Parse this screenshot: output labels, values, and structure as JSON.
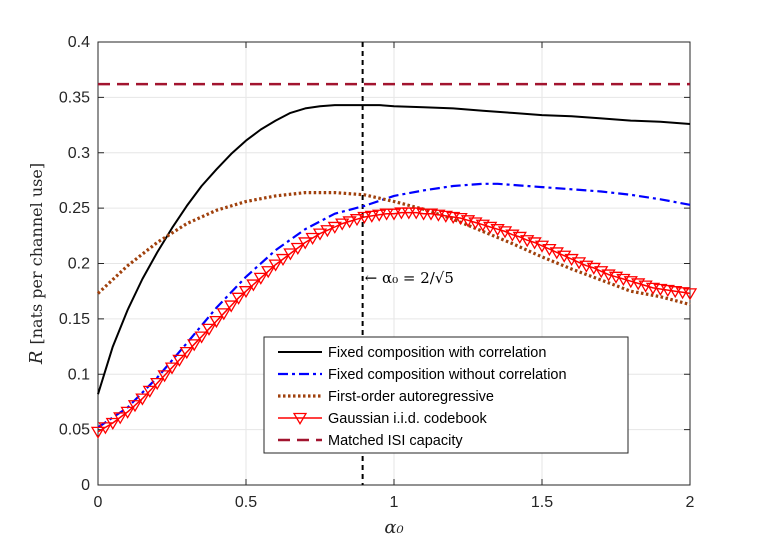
{
  "chart_data": {
    "type": "line",
    "title": "",
    "xlabel": "α₀",
    "ylabel_var": "R",
    "ylabel_unit": "[nats per channel use]",
    "xlim": [
      0,
      2
    ],
    "ylim": [
      0,
      0.4
    ],
    "grid": true,
    "legend_position": "lower-right",
    "x_ticks": [
      "0",
      "0.5",
      "1",
      "1.5",
      "2"
    ],
    "y_ticks": [
      "0",
      "0.05",
      "0.1",
      "0.15",
      "0.2",
      "0.25",
      "0.3",
      "0.35",
      "0.4"
    ],
    "vline": {
      "x": 0.894,
      "color": "#000000"
    },
    "annotation": {
      "prefix": "← α₀ = 2/√5",
      "x": 0.894,
      "y": 0.175
    },
    "series": [
      {
        "name": "Fixed composition with correlation",
        "color": "#000000",
        "style": "solid",
        "x": [
          0,
          0.05,
          0.1,
          0.15,
          0.2,
          0.25,
          0.3,
          0.35,
          0.4,
          0.45,
          0.5,
          0.55,
          0.6,
          0.65,
          0.7,
          0.75,
          0.8,
          0.85,
          0.9,
          0.95,
          1.0,
          1.1,
          1.2,
          1.3,
          1.4,
          1.5,
          1.6,
          1.7,
          1.8,
          1.9,
          2.0
        ],
        "values": [
          0.082,
          0.125,
          0.158,
          0.186,
          0.21,
          0.232,
          0.252,
          0.27,
          0.285,
          0.299,
          0.311,
          0.321,
          0.329,
          0.336,
          0.34,
          0.342,
          0.343,
          0.343,
          0.343,
          0.343,
          0.342,
          0.341,
          0.34,
          0.338,
          0.336,
          0.334,
          0.333,
          0.331,
          0.329,
          0.328,
          0.326
        ]
      },
      {
        "name": "Fixed composition without correlation",
        "color": "#0000ff",
        "style": "dashdot",
        "x": [
          0,
          0.1,
          0.2,
          0.3,
          0.4,
          0.5,
          0.6,
          0.7,
          0.8,
          0.9,
          1.0,
          1.1,
          1.2,
          1.3,
          1.35,
          1.4,
          1.5,
          1.6,
          1.7,
          1.8,
          1.9,
          2.0
        ],
        "values": [
          0.052,
          0.07,
          0.097,
          0.128,
          0.16,
          0.188,
          0.212,
          0.231,
          0.245,
          0.252,
          0.261,
          0.266,
          0.27,
          0.272,
          0.272,
          0.271,
          0.269,
          0.267,
          0.265,
          0.262,
          0.258,
          0.253
        ]
      },
      {
        "name": "First-order autoregressive",
        "color": "#a0410d",
        "style": "dotted",
        "x": [
          0,
          0.1,
          0.2,
          0.3,
          0.4,
          0.5,
          0.6,
          0.7,
          0.8,
          0.9,
          1.0,
          1.1,
          1.2,
          1.3,
          1.4,
          1.5,
          1.6,
          1.7,
          1.8,
          1.9,
          2.0
        ],
        "values": [
          0.173,
          0.198,
          0.219,
          0.236,
          0.248,
          0.256,
          0.261,
          0.264,
          0.264,
          0.262,
          0.256,
          0.249,
          0.24,
          0.229,
          0.218,
          0.206,
          0.195,
          0.185,
          0.175,
          0.17,
          0.163
        ]
      },
      {
        "name": "Gaussian i.i.d. codebook",
        "color": "#ff0000",
        "style": "solid-marker",
        "marker": "triangle-down",
        "x": [
          0,
          0.025,
          0.05,
          0.075,
          0.1,
          0.125,
          0.15,
          0.175,
          0.2,
          0.225,
          0.25,
          0.275,
          0.3,
          0.325,
          0.35,
          0.375,
          0.4,
          0.425,
          0.45,
          0.475,
          0.5,
          0.525,
          0.55,
          0.575,
          0.6,
          0.625,
          0.65,
          0.675,
          0.7,
          0.725,
          0.75,
          0.775,
          0.8,
          0.825,
          0.85,
          0.875,
          0.9,
          0.925,
          0.95,
          0.975,
          1.0,
          1.025,
          1.05,
          1.075,
          1.1,
          1.125,
          1.15,
          1.175,
          1.2,
          1.225,
          1.25,
          1.275,
          1.3,
          1.325,
          1.35,
          1.375,
          1.4,
          1.425,
          1.45,
          1.475,
          1.5,
          1.525,
          1.55,
          1.575,
          1.6,
          1.625,
          1.65,
          1.675,
          1.7,
          1.725,
          1.75,
          1.775,
          1.8,
          1.825,
          1.85,
          1.875,
          1.9,
          1.925,
          1.95,
          1.975,
          2.0
        ],
        "values": [
          0.048,
          0.052,
          0.056,
          0.061,
          0.066,
          0.072,
          0.078,
          0.085,
          0.092,
          0.099,
          0.106,
          0.113,
          0.12,
          0.127,
          0.134,
          0.141,
          0.148,
          0.155,
          0.162,
          0.169,
          0.175,
          0.181,
          0.187,
          0.193,
          0.199,
          0.204,
          0.209,
          0.214,
          0.219,
          0.223,
          0.227,
          0.23,
          0.233,
          0.236,
          0.238,
          0.24,
          0.242,
          0.243,
          0.244,
          0.245,
          0.245,
          0.246,
          0.246,
          0.246,
          0.245,
          0.245,
          0.244,
          0.243,
          0.242,
          0.241,
          0.239,
          0.237,
          0.235,
          0.233,
          0.231,
          0.229,
          0.226,
          0.224,
          0.221,
          0.219,
          0.216,
          0.213,
          0.21,
          0.207,
          0.204,
          0.201,
          0.198,
          0.196,
          0.193,
          0.19,
          0.188,
          0.186,
          0.184,
          0.182,
          0.18,
          0.178,
          0.177,
          0.176,
          0.175,
          0.174,
          0.173
        ]
      },
      {
        "name": "Matched ISI capacity",
        "color": "#a2142f",
        "style": "dashed",
        "x": [
          0,
          2
        ],
        "values": [
          0.362,
          0.362
        ]
      }
    ]
  }
}
